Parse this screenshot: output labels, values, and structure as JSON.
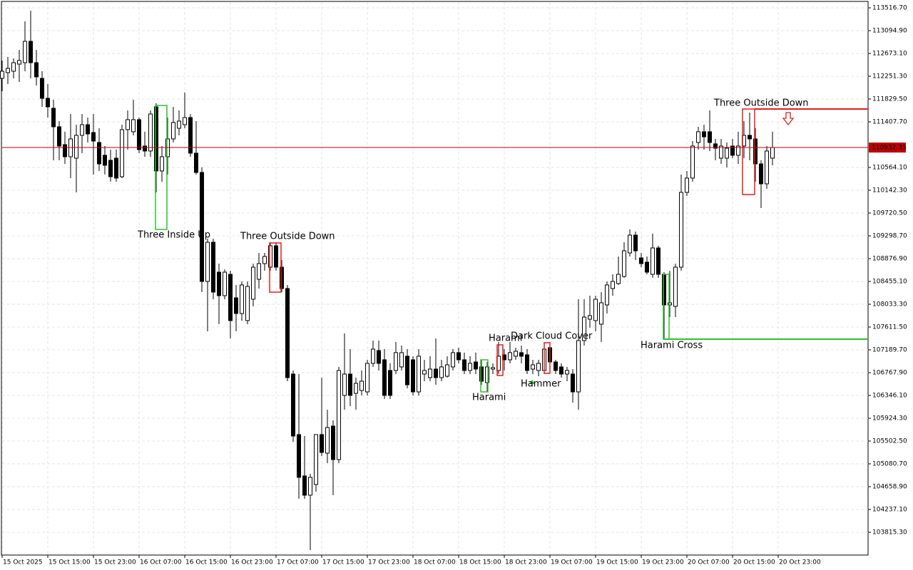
{
  "chart_data": {
    "type": "candlestick",
    "up_color": "#ffffff",
    "down_color": "#000000",
    "grid": true,
    "ylim": [
      103407,
      113622
    ],
    "yticks": [
      {
        "value": 113516.7,
        "label": "113516.70"
      },
      {
        "value": 113094.9,
        "label": "113094.90"
      },
      {
        "value": 112673.1,
        "label": "112673.10"
      },
      {
        "value": 112251.3,
        "label": "112251.30"
      },
      {
        "value": 111829.5,
        "label": "111829.50"
      },
      {
        "value": 111407.7,
        "label": "111407.70"
      },
      {
        "value": 110564.1,
        "label": "110564.10"
      },
      {
        "value": 110142.3,
        "label": "110142.30"
      },
      {
        "value": 109720.5,
        "label": "109720.50"
      },
      {
        "value": 109298.7,
        "label": "109298.70"
      },
      {
        "value": 108876.9,
        "label": "108876.90"
      },
      {
        "value": 108455.1,
        "label": "108455.10"
      },
      {
        "value": 108033.3,
        "label": "108033.30"
      },
      {
        "value": 107611.5,
        "label": "107611.50"
      },
      {
        "value": 107189.7,
        "label": "107189.70"
      },
      {
        "value": 106767.9,
        "label": "106767.90"
      },
      {
        "value": 106346.1,
        "label": "106346.10"
      },
      {
        "value": 105924.3,
        "label": "105924.30"
      },
      {
        "value": 105502.5,
        "label": "105502.50"
      },
      {
        "value": 105080.7,
        "label": "105080.70"
      },
      {
        "value": 104658.9,
        "label": "104658.90"
      },
      {
        "value": 104237.1,
        "label": "104237.10"
      },
      {
        "value": 103815.3,
        "label": "103815.30"
      }
    ],
    "last_price": 110932.35,
    "last_price_color": "#c00000",
    "categories": [
      "15 Oct 2025",
      null,
      null,
      null,
      null,
      null,
      null,
      null,
      "15 Oct 15:00",
      null,
      null,
      null,
      null,
      null,
      null,
      null,
      "15 Oct 23:00",
      null,
      null,
      null,
      null,
      null,
      null,
      null,
      "16 Oct 07:00",
      null,
      null,
      null,
      null,
      null,
      null,
      null,
      "16 Oct 15:00",
      null,
      null,
      null,
      null,
      null,
      null,
      null,
      "16 Oct 23:00",
      null,
      null,
      null,
      null,
      null,
      null,
      null,
      "17 Oct 07:00",
      null,
      null,
      null,
      null,
      null,
      null,
      null,
      "17 Oct 15:00",
      null,
      null,
      null,
      null,
      null,
      null,
      null,
      "17 Oct 23:00",
      null,
      null,
      null,
      null,
      null,
      null,
      null,
      "18 Oct 07:00",
      null,
      null,
      null,
      null,
      null,
      null,
      null,
      "18 Oct 15:00",
      null,
      null,
      null,
      null,
      null,
      null,
      null,
      "18 Oct 23:00",
      null,
      null,
      null,
      null,
      null,
      null,
      null,
      "19 Oct 07:00",
      null,
      null,
      null,
      null,
      null,
      null,
      null,
      "19 Oct 15:00",
      null,
      null,
      null,
      null,
      null,
      null,
      null,
      "19 Oct 23:00",
      null,
      null,
      null,
      null,
      null,
      null,
      null,
      "20 Oct 07:00",
      null,
      null,
      null,
      null,
      null,
      null,
      null,
      "20 Oct 15:00",
      null,
      null,
      null,
      null,
      null,
      null,
      null,
      "20 Oct 23:00"
    ],
    "ohlc": [
      [
        112212,
        112542,
        111975,
        112344
      ],
      [
        112318,
        112608,
        112107,
        112397
      ],
      [
        112344,
        112581,
        112212,
        112502
      ],
      [
        112476,
        112739,
        112146,
        112542
      ],
      [
        112502,
        113266,
        112344,
        112897
      ],
      [
        112897,
        113464,
        112212,
        112502
      ],
      [
        112502,
        112739,
        112080,
        112239
      ],
      [
        112212,
        112344,
        111685,
        111843
      ],
      [
        111843,
        112107,
        111487,
        111685
      ],
      [
        111659,
        111817,
        110696,
        111316
      ],
      [
        111316,
        111421,
        110696,
        110960
      ],
      [
        110986,
        111224,
        110630,
        110762
      ],
      [
        110762,
        111553,
        110367,
        111092
      ],
      [
        110736,
        111355,
        110103,
        111158
      ],
      [
        111158,
        111553,
        110828,
        111355
      ],
      [
        111355,
        111487,
        111026,
        111184
      ],
      [
        111210,
        111553,
        110433,
        111052
      ],
      [
        111026,
        111289,
        110499,
        110630
      ],
      [
        110789,
        110960,
        110433,
        110604
      ],
      [
        110696,
        110894,
        110301,
        110393
      ],
      [
        110736,
        110894,
        110301,
        110367
      ],
      [
        110393,
        111355,
        110367,
        111263
      ],
      [
        111263,
        111619,
        110894,
        111448
      ],
      [
        111224,
        111817,
        111158,
        111448
      ],
      [
        111448,
        111487,
        110828,
        110894
      ],
      [
        110960,
        111224,
        110762,
        110868
      ],
      [
        110868,
        111619,
        110762,
        111553
      ],
      [
        111685,
        111751,
        110103,
        110499
      ],
      [
        110499,
        110960,
        110301,
        110762
      ],
      [
        110762,
        111487,
        110433,
        111092
      ],
      [
        111092,
        111685,
        111026,
        111395
      ],
      [
        111289,
        111619,
        111158,
        111421
      ],
      [
        111355,
        111949,
        111289,
        111487
      ],
      [
        111487,
        111553,
        110762,
        110828
      ],
      [
        110828,
        111421,
        110433,
        110472
      ],
      [
        110472,
        110565,
        108258,
        108455
      ],
      [
        108455,
        109246,
        107533,
        109180
      ],
      [
        109180,
        109246,
        108126,
        108258
      ],
      [
        108627,
        108785,
        107665,
        108192
      ],
      [
        108192,
        108680,
        108126,
        108627
      ],
      [
        108587,
        108653,
        107401,
        107731
      ],
      [
        108152,
        108390,
        107533,
        107862
      ],
      [
        107862,
        108455,
        107731,
        108390
      ],
      [
        107731,
        108455,
        107665,
        108363
      ],
      [
        108126,
        108785,
        107994,
        108719
      ],
      [
        108495,
        108983,
        108324,
        108785
      ],
      [
        108785,
        108983,
        108653,
        108917
      ],
      [
        108719,
        109180,
        108653,
        109115
      ],
      [
        109115,
        109180,
        108653,
        108719
      ],
      [
        108719,
        108851,
        108258,
        108324
      ],
      [
        108324,
        108390,
        106610,
        106676
      ],
      [
        106742,
        106808,
        105490,
        105595
      ],
      [
        105622,
        106742,
        104435,
        104831
      ],
      [
        104857,
        105595,
        104435,
        104501
      ],
      [
        104501,
        104896,
        103486,
        104831
      ],
      [
        104699,
        105622,
        104567,
        105622
      ],
      [
        105622,
        106676,
        105226,
        105292
      ],
      [
        105279,
        106083,
        105094,
        105753
      ],
      [
        105780,
        105885,
        104501,
        105160
      ],
      [
        105160,
        106874,
        105094,
        106808
      ],
      [
        106347,
        107493,
        106083,
        106742
      ],
      [
        106742,
        107203,
        106149,
        106347
      ],
      [
        106386,
        106676,
        106083,
        106570
      ],
      [
        106439,
        106808,
        106347,
        106610
      ],
      [
        106412,
        107006,
        106347,
        106940
      ],
      [
        106940,
        107362,
        106874,
        107203
      ],
      [
        107177,
        107362,
        106808,
        106940
      ],
      [
        107006,
        107203,
        106281,
        106347
      ],
      [
        106808,
        106940,
        106281,
        106347
      ],
      [
        106808,
        107335,
        106742,
        107138
      ],
      [
        106874,
        107269,
        106808,
        107138
      ],
      [
        107072,
        107203,
        106478,
        106544
      ],
      [
        107006,
        107072,
        106347,
        106412
      ],
      [
        106412,
        107203,
        106347,
        107072
      ],
      [
        106742,
        107006,
        106610,
        106808
      ],
      [
        106676,
        107072,
        106610,
        106834
      ],
      [
        106834,
        107401,
        106544,
        106676
      ],
      [
        106676,
        107006,
        106610,
        106874
      ],
      [
        106702,
        107072,
        106676,
        106913
      ],
      [
        106874,
        107203,
        106808,
        107138
      ],
      [
        107138,
        107230,
        106940,
        107006
      ],
      [
        107006,
        107138,
        106742,
        106808
      ],
      [
        106808,
        107072,
        106742,
        106940
      ],
      [
        106966,
        107138,
        106742,
        106834
      ],
      [
        106874,
        107006,
        106544,
        106610
      ],
      [
        106584,
        106966,
        106412,
        106874
      ],
      [
        106834,
        106940,
        106742,
        106861
      ],
      [
        106808,
        107335,
        106742,
        107072
      ],
      [
        107098,
        107203,
        106808,
        107006
      ],
      [
        107006,
        107335,
        106940,
        107138
      ],
      [
        107072,
        107230,
        107006,
        107164
      ],
      [
        107138,
        107269,
        106940,
        107072
      ],
      [
        107098,
        107203,
        106742,
        106808
      ],
      [
        106834,
        107006,
        106742,
        106913
      ],
      [
        106808,
        107006,
        106702,
        106940
      ],
      [
        106808,
        107269,
        106742,
        107203
      ],
      [
        107230,
        107335,
        106808,
        106966
      ],
      [
        106966,
        107006,
        106742,
        106808
      ],
      [
        106874,
        106940,
        106676,
        106742
      ],
      [
        106742,
        106874,
        106610,
        106808
      ],
      [
        106742,
        106834,
        106215,
        106412
      ],
      [
        106412,
        108126,
        106083,
        107362
      ],
      [
        107362,
        108126,
        107269,
        107796
      ],
      [
        107757,
        108192,
        107599,
        107823
      ],
      [
        107731,
        108192,
        107533,
        108126
      ],
      [
        107665,
        108258,
        107335,
        108060
      ],
      [
        108021,
        108455,
        107862,
        108390
      ],
      [
        108324,
        108587,
        108192,
        108455
      ],
      [
        108416,
        108917,
        108390,
        108587
      ],
      [
        108548,
        109180,
        108521,
        109022
      ],
      [
        108983,
        109418,
        108917,
        109312
      ],
      [
        109312,
        109378,
        108851,
        109022
      ],
      [
        108891,
        108983,
        108719,
        108785
      ],
      [
        108811,
        108917,
        108587,
        108627
      ],
      [
        108587,
        109339,
        108521,
        109075
      ],
      [
        109075,
        109115,
        108521,
        108587
      ],
      [
        108587,
        108627,
        107401,
        108021
      ],
      [
        108021,
        108653,
        107796,
        108060
      ],
      [
        107994,
        108785,
        107796,
        108719
      ],
      [
        108719,
        110433,
        108653,
        110103
      ],
      [
        110103,
        110499,
        110037,
        110367
      ],
      [
        110367,
        111052,
        110301,
        110960
      ],
      [
        111026,
        111316,
        110894,
        111224
      ],
      [
        111224,
        111355,
        110894,
        111131
      ],
      [
        111224,
        111619,
        110868,
        111026
      ],
      [
        111000,
        111092,
        110696,
        110920
      ],
      [
        110736,
        111092,
        110630,
        110960
      ],
      [
        110736,
        111026,
        110565,
        110920
      ],
      [
        110960,
        111092,
        110736,
        110789
      ],
      [
        110789,
        111224,
        110630,
        110960
      ],
      [
        110960,
        111421,
        110736,
        111158
      ],
      [
        111158,
        111579,
        110696,
        111092
      ],
      [
        111092,
        111289,
        110301,
        110630
      ],
      [
        110630,
        110696,
        109813,
        110261
      ],
      [
        110261,
        110960,
        110169,
        110868
      ],
      [
        110736,
        111224,
        110604,
        110932.35
      ]
    ],
    "annotations": [
      {
        "text": "Three Inside Up",
        "color": "#2ec22e"
      },
      {
        "text": "Three Outside Down",
        "color": "#e0201b"
      },
      {
        "text": "Harami",
        "color": "#e0201b"
      },
      {
        "text": "Dark Cloud Cover",
        "color": "#e0201b"
      },
      {
        "text": "Harami",
        "color": "#2ec22e"
      },
      {
        "text": "Hammer",
        "color": "#2ec22e"
      },
      {
        "text": "Harami Cross",
        "color": "#2ec22e"
      },
      {
        "text": "Three Outside Down",
        "color": "#e0201b"
      }
    ]
  }
}
